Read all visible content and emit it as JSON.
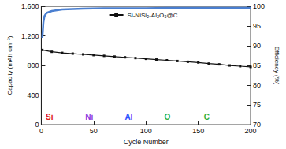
{
  "chart_data": {
    "type": "line",
    "x_label": "Cycle Number",
    "y_label": "Capacity (mAh cm⁻³)",
    "y2_label": "Efficiency (%)",
    "xlim": [
      0,
      200
    ],
    "xticks": [
      0,
      50,
      100,
      150,
      200
    ],
    "ylim": [
      0,
      1600
    ],
    "yticks": [
      0,
      400,
      800,
      1200,
      1600
    ],
    "y2lim": [
      70,
      100
    ],
    "y2ticks": [
      70,
      75,
      80,
      85,
      90,
      95,
      100
    ],
    "grid": false,
    "legend": "upper center",
    "series": [
      {
        "name": "Si-NiSi₂-Al₂O₃@C",
        "color": "#111111",
        "marker": "square",
        "line_style": "solid",
        "x": [
          1,
          10,
          20,
          30,
          40,
          50,
          60,
          70,
          80,
          90,
          100,
          110,
          120,
          130,
          140,
          150,
          160,
          170,
          180,
          190,
          200
        ],
        "values": [
          1010,
          985,
          970,
          960,
          950,
          940,
          930,
          920,
          910,
          900,
          890,
          880,
          870,
          860,
          850,
          840,
          825,
          815,
          800,
          790,
          780
        ]
      },
      {
        "color": "#4a7fd0",
        "marker": "none",
        "line_style": "solid",
        "axis": "y2",
        "x": [
          1,
          2,
          3,
          5,
          10,
          20,
          40,
          60,
          80,
          100,
          120,
          140,
          160,
          180,
          200
        ],
        "values": [
          92,
          96,
          97.5,
          98.3,
          98.8,
          99.2,
          99.4,
          99.5,
          99.5,
          99.5,
          99.6,
          99.6,
          99.6,
          99.6,
          99.6
        ]
      }
    ],
    "annotations": [
      {
        "text": "Si",
        "color": "#e02020"
      },
      {
        "text": "Ni",
        "color": "#8a3be0"
      },
      {
        "text": "Al",
        "color": "#3050ff"
      },
      {
        "text": "O",
        "color": "#30b040"
      },
      {
        "text": "C",
        "color": "#30b040"
      }
    ]
  }
}
